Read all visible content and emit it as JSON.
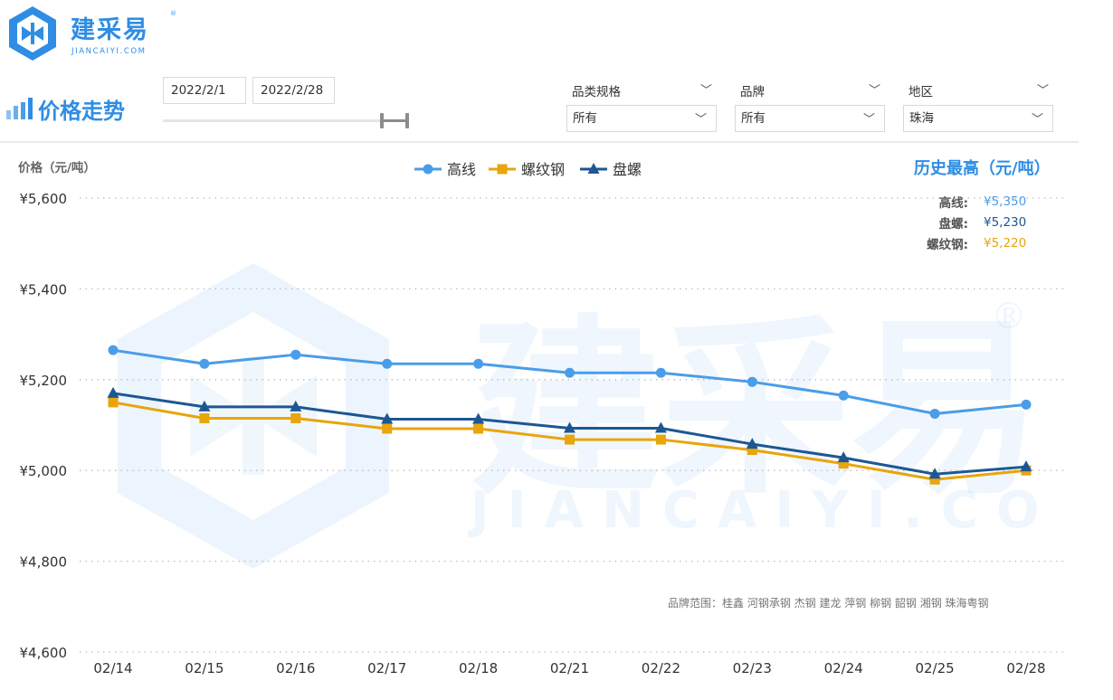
{
  "brand": {
    "name": "建采易",
    "sub": "JIANCAIYI.COM",
    "reg": "®"
  },
  "page": {
    "title": "价格走势"
  },
  "date_range": {
    "start": "2022/2/1",
    "end": "2022/2/28"
  },
  "filters": [
    {
      "label": "品类规格",
      "value": "所有"
    },
    {
      "label": "品牌",
      "value": "所有"
    },
    {
      "label": "地区",
      "value": "珠海"
    }
  ],
  "history": {
    "title": "历史最高（元/吨）",
    "items": [
      {
        "label": "高线:",
        "value": "¥5,350",
        "color": "#4a9de8"
      },
      {
        "label": "盘螺:",
        "value": "¥5,230",
        "color": "#1d5793"
      },
      {
        "label": "螺纹钢:",
        "value": "¥5,220",
        "color": "#e8a50c"
      }
    ]
  },
  "brand_note": "品牌范围：桂鑫  河钢承钢  杰钢  建龙  萍钢  柳钢  韶钢  湘钢  珠海粤钢",
  "watermark": {
    "text": "建采易",
    "sub": "JIANCAIYI.COM",
    "reg": "®"
  },
  "chart_data": {
    "type": "line",
    "ylabel": "价格（元/吨）",
    "categories": [
      "02/14",
      "02/15",
      "02/16",
      "02/17",
      "02/18",
      "02/21",
      "02/22",
      "02/23",
      "02/24",
      "02/25",
      "02/28"
    ],
    "ylim": [
      4600,
      5600
    ],
    "yticks": [
      4600,
      4800,
      5000,
      5200,
      5400,
      5600
    ],
    "ytick_labels": [
      "¥4,600",
      "¥4,800",
      "¥5,000",
      "¥5,200",
      "¥5,400",
      "¥5,600"
    ],
    "grid": true,
    "legend_position": "top-center",
    "series": [
      {
        "name": "高线",
        "color": "#4a9de8",
        "marker": "circle",
        "values": [
          5265,
          5235,
          5255,
          5235,
          5235,
          5215,
          5215,
          5195,
          5165,
          5125,
          5145
        ]
      },
      {
        "name": "螺纹钢",
        "color": "#e8a50c",
        "marker": "square",
        "values": [
          5150,
          5115,
          5115,
          5092,
          5092,
          5068,
          5068,
          5045,
          5015,
          4980,
          5000
        ]
      },
      {
        "name": "盘螺",
        "color": "#1d5793",
        "marker": "triangle",
        "values": [
          5170,
          5140,
          5140,
          5113,
          5113,
          5093,
          5093,
          5058,
          5028,
          4992,
          5008
        ]
      }
    ]
  }
}
